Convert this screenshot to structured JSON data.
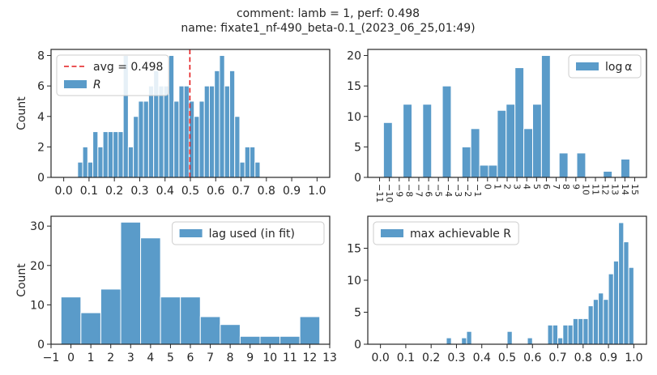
{
  "suptitle": {
    "line1": "comment: lamb = 1,  perf: 0.498",
    "line2": "name: fixate1_nf-490_beta-0.1_(2023_06_25,01:49)"
  },
  "colors": {
    "bar": "#5a9bc9",
    "bar_edge": "#ffffff",
    "avg_line": "#e41a1c",
    "frame": "#262626"
  },
  "chart_data": [
    {
      "type": "bar",
      "id": "R",
      "ylabel": "Count",
      "xlim": [
        -0.05,
        1.05
      ],
      "ylim": [
        0,
        8.4
      ],
      "xticks": [
        0.0,
        0.1,
        0.2,
        0.3,
        0.4,
        0.5,
        0.6,
        0.7,
        0.8,
        0.9,
        1.0
      ],
      "xtick_labels": [
        "0.0",
        "0.1",
        "0.2",
        "0.3",
        "0.4",
        "0.5",
        "0.6",
        "0.7",
        "0.8",
        "0.9",
        "1.0"
      ],
      "yticks": [
        0,
        2,
        4,
        6,
        8
      ],
      "ytick_labels": [
        "0",
        "2",
        "4",
        "6",
        "8"
      ],
      "bin_start": 0.055,
      "bin_width": 0.02,
      "values": [
        1,
        2,
        1,
        3,
        2,
        3,
        3,
        3,
        3,
        8,
        2,
        4,
        5,
        5,
        6,
        7,
        6,
        6,
        8,
        5,
        6,
        6,
        5,
        4,
        5,
        6,
        6,
        7,
        8,
        6,
        7,
        4,
        1,
        2,
        2,
        1
      ],
      "avg_line": {
        "x": 0.498
      },
      "legend": {
        "position": "upper left",
        "entries": [
          "avg = 0.498",
          "R"
        ]
      }
    },
    {
      "type": "bar",
      "id": "log_alpha",
      "ylabel": "",
      "xlim": [
        -12.2,
        16.2
      ],
      "ylim": [
        0,
        21
      ],
      "xticks": [
        -11,
        -10,
        -9,
        -8,
        -7,
        -6,
        -5,
        -4,
        -3,
        -2,
        -1,
        0,
        1,
        2,
        3,
        4,
        5,
        6,
        7,
        8,
        9,
        10,
        11,
        12,
        13,
        14,
        15
      ],
      "xtick_labels": [
        "−11",
        "−10",
        "−9",
        "−8",
        "−7",
        "−6",
        "−5",
        "−4",
        "−3",
        "−2",
        "−1",
        "0",
        "1",
        "2",
        "3",
        "4",
        "5",
        "6",
        "7",
        "8",
        "9",
        "10",
        "11",
        "12",
        "13",
        "14",
        "15"
      ],
      "xtick_rotation": 90,
      "yticks": [
        0,
        5,
        10,
        15,
        20
      ],
      "ytick_labels": [
        "0",
        "5",
        "10",
        "15",
        "20"
      ],
      "bins": [
        {
          "x0": -10.6,
          "x1": -9.7,
          "v": 9
        },
        {
          "x0": -8.6,
          "x1": -7.7,
          "v": 12
        },
        {
          "x0": -6.6,
          "x1": -5.7,
          "v": 12
        },
        {
          "x0": -4.6,
          "x1": -3.7,
          "v": 15
        },
        {
          "x0": -2.6,
          "x1": -1.7,
          "v": 5
        },
        {
          "x0": -1.7,
          "x1": -0.8,
          "v": 8
        },
        {
          "x0": -0.8,
          "x1": 0.1,
          "v": 2
        },
        {
          "x0": 0.1,
          "x1": 1.0,
          "v": 2
        },
        {
          "x0": 1.0,
          "x1": 1.9,
          "v": 11
        },
        {
          "x0": 1.9,
          "x1": 2.8,
          "v": 12
        },
        {
          "x0": 2.8,
          "x1": 3.7,
          "v": 18
        },
        {
          "x0": 3.7,
          "x1": 4.6,
          "v": 8
        },
        {
          "x0": 4.6,
          "x1": 5.5,
          "v": 12
        },
        {
          "x0": 5.5,
          "x1": 6.4,
          "v": 20
        },
        {
          "x0": 7.3,
          "x1": 8.2,
          "v": 4
        },
        {
          "x0": 9.1,
          "x1": 10.0,
          "v": 4
        },
        {
          "x0": 11.8,
          "x1": 12.7,
          "v": 1
        },
        {
          "x0": 13.6,
          "x1": 14.5,
          "v": 3
        }
      ],
      "legend": {
        "position": "upper right",
        "entries": [
          "log α"
        ]
      }
    },
    {
      "type": "bar",
      "id": "lag",
      "ylabel": "Count",
      "xlim": [
        -1,
        13
      ],
      "ylim": [
        0,
        32.5
      ],
      "xticks": [
        -1,
        0,
        1,
        2,
        3,
        4,
        5,
        6,
        7,
        8,
        9,
        10,
        11,
        12,
        13
      ],
      "xtick_labels": [
        "−1",
        "0",
        "1",
        "2",
        "3",
        "4",
        "5",
        "6",
        "7",
        "8",
        "9",
        "10",
        "11",
        "12",
        "13"
      ],
      "yticks": [
        0,
        10,
        20,
        30
      ],
      "ytick_labels": [
        "0",
        "10",
        "20",
        "30"
      ],
      "bin_start": -0.5,
      "bin_width": 1,
      "values": [
        12,
        8,
        14,
        31,
        27,
        12,
        12,
        7,
        5,
        2,
        2,
        2,
        7
      ],
      "legend": {
        "position": "upper right",
        "entries": [
          "lag used (in fit)"
        ]
      }
    },
    {
      "type": "bar",
      "id": "max_R",
      "ylabel": "",
      "xlim": [
        -0.05,
        1.05
      ],
      "ylim": [
        0,
        20
      ],
      "xticks": [
        0.0,
        0.1,
        0.2,
        0.3,
        0.4,
        0.5,
        0.6,
        0.7,
        0.8,
        0.9,
        1.0
      ],
      "xtick_labels": [
        "0.0",
        "0.1",
        "0.2",
        "0.3",
        "0.4",
        "0.5",
        "0.6",
        "0.7",
        "0.8",
        "0.9",
        "1.0"
      ],
      "yticks": [
        0,
        5,
        10,
        15
      ],
      "ytick_labels": [
        "0",
        "5",
        "10",
        "15"
      ],
      "bins": [
        {
          "x0": 0.26,
          "x1": 0.28,
          "v": 1
        },
        {
          "x0": 0.32,
          "x1": 0.34,
          "v": 1
        },
        {
          "x0": 0.34,
          "x1": 0.36,
          "v": 2
        },
        {
          "x0": 0.5,
          "x1": 0.52,
          "v": 2
        },
        {
          "x0": 0.58,
          "x1": 0.6,
          "v": 1
        },
        {
          "x0": 0.66,
          "x1": 0.68,
          "v": 3
        },
        {
          "x0": 0.68,
          "x1": 0.7,
          "v": 3
        },
        {
          "x0": 0.7,
          "x1": 0.72,
          "v": 1
        },
        {
          "x0": 0.72,
          "x1": 0.74,
          "v": 3
        },
        {
          "x0": 0.74,
          "x1": 0.76,
          "v": 3
        },
        {
          "x0": 0.76,
          "x1": 0.78,
          "v": 4
        },
        {
          "x0": 0.78,
          "x1": 0.8,
          "v": 4
        },
        {
          "x0": 0.8,
          "x1": 0.82,
          "v": 4
        },
        {
          "x0": 0.82,
          "x1": 0.84,
          "v": 6
        },
        {
          "x0": 0.84,
          "x1": 0.86,
          "v": 7
        },
        {
          "x0": 0.86,
          "x1": 0.88,
          "v": 8
        },
        {
          "x0": 0.88,
          "x1": 0.9,
          "v": 7
        },
        {
          "x0": 0.9,
          "x1": 0.92,
          "v": 11
        },
        {
          "x0": 0.92,
          "x1": 0.94,
          "v": 13
        },
        {
          "x0": 0.94,
          "x1": 0.96,
          "v": 19
        },
        {
          "x0": 0.96,
          "x1": 0.98,
          "v": 16
        },
        {
          "x0": 0.98,
          "x1": 1.0,
          "v": 12
        }
      ],
      "legend": {
        "position": "upper left",
        "entries": [
          "max achievable R"
        ]
      }
    }
  ]
}
